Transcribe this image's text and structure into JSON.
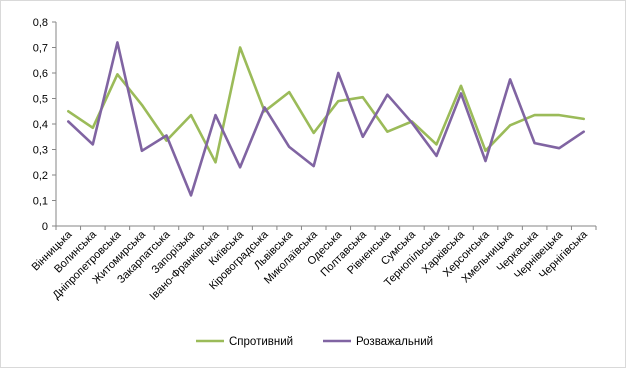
{
  "chart_data": {
    "type": "line",
    "categories": [
      "Вінницька",
      "Волинська",
      "Дніпропетровська",
      "Житомирська",
      "Закарпатська",
      "Запорізька",
      "Івано-Франківська",
      "Київська",
      "Кіровоградська",
      "Львівська",
      "Миколаївська",
      "Одеська",
      "Полтавська",
      "Рівненська",
      "Сумська",
      "Тернопільська",
      "Харківська",
      "Херсонська",
      "Хмельницька",
      "Черкаська",
      "Чернівецька",
      "Чернігівська"
    ],
    "series": [
      {
        "name": "Спротивний",
        "color": "#9bbb59",
        "values": [
          0.45,
          0.385,
          0.595,
          0.475,
          0.335,
          0.435,
          0.25,
          0.7,
          0.45,
          0.525,
          0.365,
          0.49,
          0.505,
          0.37,
          0.41,
          0.32,
          0.55,
          0.295,
          0.395,
          0.435,
          0.435,
          0.42
        ]
      },
      {
        "name": "Розважальний",
        "color": "#8064a2",
        "values": [
          0.41,
          0.32,
          0.72,
          0.295,
          0.355,
          0.12,
          0.435,
          0.23,
          0.465,
          0.31,
          0.235,
          0.6,
          0.35,
          0.515,
          0.405,
          0.275,
          0.52,
          0.255,
          0.575,
          0.325,
          0.305,
          0.37
        ]
      }
    ],
    "ylim": [
      0,
      0.8
    ],
    "yticks": [
      "0",
      "0,1",
      "0,2",
      "0,3",
      "0,4",
      "0,5",
      "0,6",
      "0,7",
      "0,8"
    ],
    "grid": false,
    "legend": "bottom",
    "title": "",
    "xlabel": "",
    "ylabel": ""
  }
}
